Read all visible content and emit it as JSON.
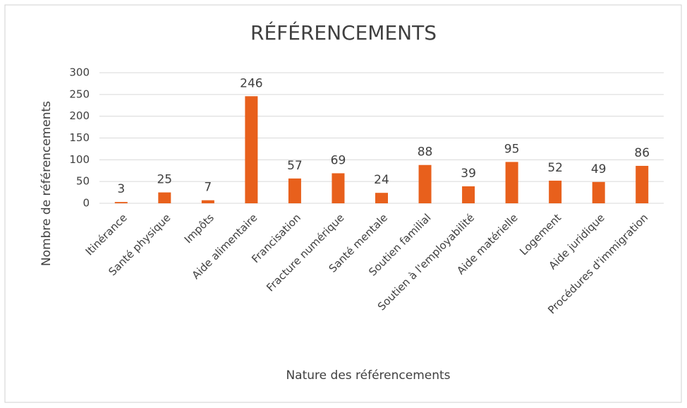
{
  "chart_data": {
    "type": "bar",
    "title": "RÉFÉRENCEMENTS",
    "x_label": "Nature des référencements",
    "y_label": "Nombre de référencements",
    "categories": [
      "Itinérance",
      "Santé physique",
      "Impôts",
      "Aide alimentaire",
      "Francisation",
      "Fracture numérique",
      "Santé mentale",
      "Soutien familial",
      "Soutien à l'employabilité",
      "Aide matérielle",
      "Logement",
      "Aide juridique",
      "Procédures d'immigration"
    ],
    "values": [
      3,
      25,
      7,
      246,
      57,
      69,
      24,
      88,
      39,
      95,
      52,
      49,
      86
    ],
    "color": "#e8601c",
    "ylim": [
      0,
      300
    ],
    "yticks": [
      0,
      50,
      100,
      150,
      200,
      250,
      300
    ],
    "grid": true
  }
}
